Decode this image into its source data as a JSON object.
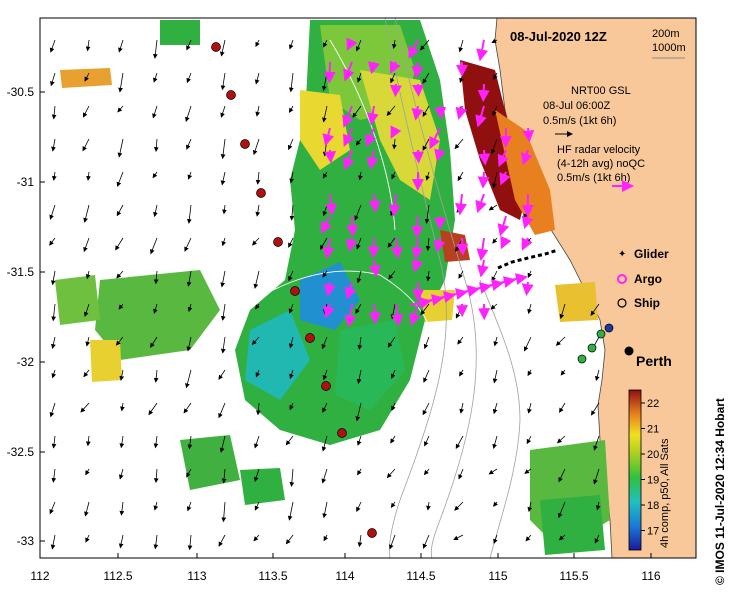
{
  "title": "08-Jul-2020 12Z",
  "scale": {
    "a": "200m",
    "b": "1000m"
  },
  "nrt": {
    "l1": "NRT00 GSL",
    "l2": "08-Jul 06:00Z",
    "l3": "0.5m/s (1kt 6h)"
  },
  "hf": {
    "l1": "HF radar velocity",
    "l2": "(4-12h avg) noQC",
    "l3": "0.5m/s (1kt 6h)"
  },
  "legend": {
    "glider": "Glider",
    "argo": "Argo",
    "ship": "Ship"
  },
  "place": "Perth",
  "colorbar": {
    "ticks": [
      "22",
      "21",
      "20",
      "19",
      "18",
      "17"
    ],
    "label": "4h comp, p50, All Sats"
  },
  "credit": "© IMOS 11-Jul-2020 12:34 Hobart",
  "yticks": [
    "-30.5",
    "-31",
    "-31.5",
    "-32",
    "-32.5",
    "-33"
  ],
  "xticks": [
    "112",
    "112.5",
    "113",
    "113.5",
    "114",
    "114.5",
    "115",
    "115.5",
    "116"
  ],
  "colors": {
    "land": "#f8c89a",
    "hf": "#ff22ff",
    "station": "#b01010"
  }
}
